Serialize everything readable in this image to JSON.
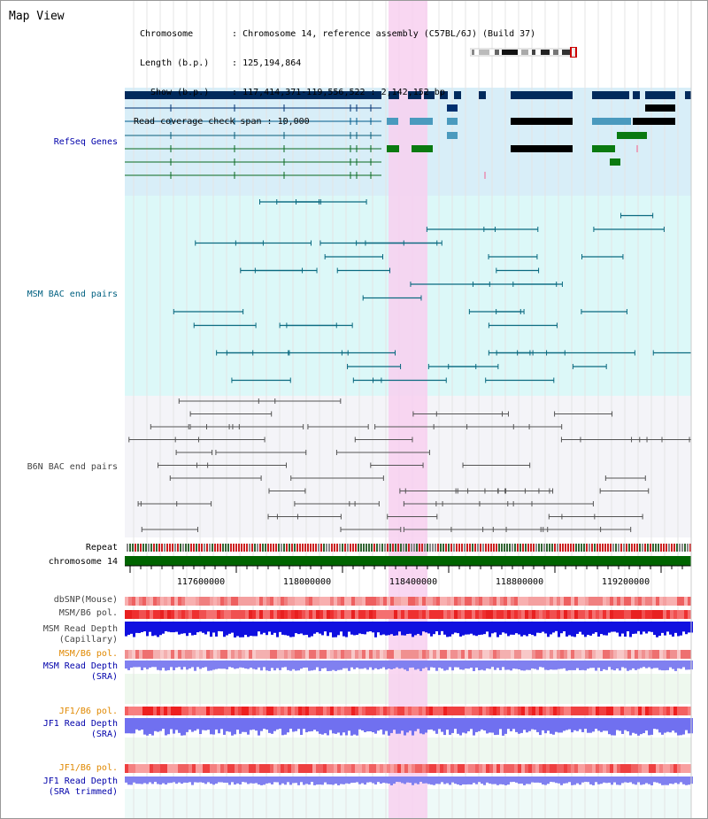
{
  "page": {
    "title": "Map View"
  },
  "header": {
    "chromosome_label": "Chromosome",
    "chromosome_value": "Chromosome 14, reference assembly (C57BL/6J) (Build 37)",
    "length_label": "Length (b.p.)",
    "length_value": "125,194,864",
    "show_label": "Show (b.p.)",
    "show_value": "117,414,371-119,556,522 : 2,142,152 bp",
    "coverage_label": "Read coverage check span",
    "coverage_value": "10,000"
  },
  "tracks": {
    "refseq": "RefSeq Genes",
    "msm_bac": "MSM BAC end pairs",
    "b6n_bac": "B6N BAC end pairs",
    "repeat": "Repeat",
    "chromosome": "chromosome 14",
    "dbsnp": "dbSNP(Mouse)",
    "msm_b6_pol_1": "MSM/B6 pol.",
    "msm_read_depth_cap_1": "MSM Read Depth",
    "msm_read_depth_cap_2": "(Capillary)",
    "msm_b6_pol_2": "MSM/B6 pol.",
    "msm_read_depth_sra_1": "MSM Read Depth",
    "msm_read_depth_sra_2": "(SRA)",
    "jf1_b6_pol_1": "JF1/B6 pol.",
    "jf1_read_depth_sra_1": "JF1 Read Depth",
    "jf1_read_depth_sra_2": "(SRA)",
    "jf1_b6_pol_2": "JF1/B6 pol.",
    "jf1_read_depth_trim_1": "JF1 Read Depth",
    "jf1_read_depth_trim_2": "(SRA trimmed)"
  },
  "axis": {
    "ticks": [
      "117600000",
      "118000000",
      "118400000",
      "118800000",
      "119200000"
    ]
  },
  "colors": {
    "refseq_label": "#0000aa",
    "msm_label": "#006080",
    "b6n_label": "#444444",
    "orange_label": "#e08800",
    "blue_label": "#0000aa",
    "highlight": "#f8d8f0",
    "refseq_bg": "#d8eef8",
    "msm_bg": "#dcf8f8",
    "chromosome_bar": "#006400"
  }
}
